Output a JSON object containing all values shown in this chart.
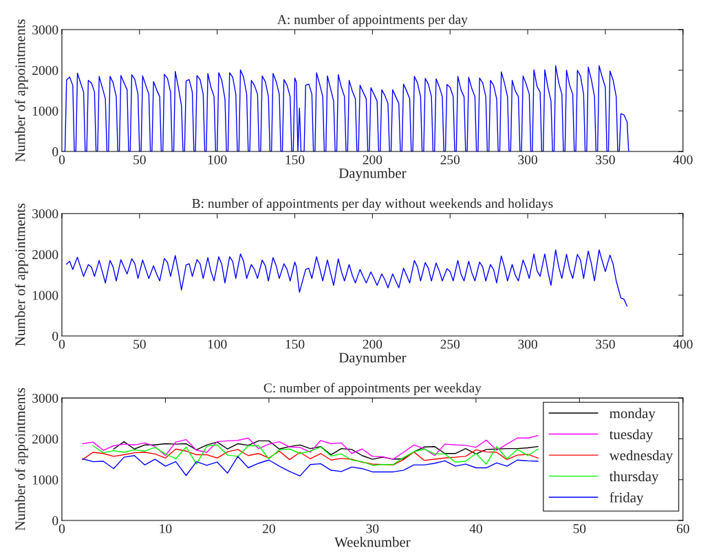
{
  "chart_data": [
    {
      "type": "line",
      "title": "A: number of appointments per day",
      "xlabel": "Daynumber",
      "ylabel": "Number of appointments",
      "xlim": [
        0,
        400
      ],
      "xticks": [
        0,
        50,
        100,
        150,
        200,
        250,
        300,
        350,
        400
      ],
      "ylim": [
        0,
        3000
      ],
      "yticks": [
        0,
        1000,
        2000,
        3000
      ],
      "grid": false,
      "legend": false,
      "marker": "none",
      "line_style": "solid",
      "series": [
        {
          "color": "#0000ff",
          "x": [
            1,
            2,
            3,
            5,
            7,
            8,
            9,
            10,
            12,
            14,
            15,
            16,
            17,
            19,
            21,
            22,
            23,
            24,
            26,
            28,
            29,
            30,
            31,
            33,
            35,
            36,
            37,
            38,
            40,
            42,
            43,
            44,
            45,
            47,
            49,
            50,
            51,
            52,
            54,
            56,
            57,
            58,
            59,
            61,
            63,
            64,
            65,
            66,
            68,
            70,
            71,
            72,
            73,
            75,
            77,
            78,
            79,
            80,
            82,
            84,
            85,
            86,
            87,
            89,
            91,
            92,
            93,
            94,
            96,
            98,
            99,
            100,
            101,
            103,
            105,
            106,
            107,
            108,
            110,
            112,
            113,
            114,
            115,
            117,
            119,
            120,
            121,
            122,
            124,
            126,
            127,
            128,
            129,
            131,
            133,
            134,
            135,
            136,
            138,
            140,
            141,
            142,
            143,
            145,
            147,
            148,
            149,
            150,
            151,
            152,
            153,
            154,
            155,
            156,
            157,
            159,
            161,
            162,
            163,
            164,
            166,
            168,
            169,
            170,
            171,
            173,
            175,
            176,
            177,
            178,
            180,
            182,
            183,
            184,
            185,
            187,
            189,
            190,
            191,
            192,
            194,
            196,
            197,
            198,
            199,
            201,
            203,
            204,
            205,
            206,
            208,
            210,
            211,
            212,
            213,
            215,
            217,
            218,
            219,
            220,
            222,
            224,
            225,
            226,
            227,
            229,
            231,
            232,
            233,
            234,
            236,
            238,
            239,
            240,
            241,
            243,
            245,
            246,
            247,
            248,
            250,
            252,
            253,
            254,
            255,
            257,
            259,
            260,
            261,
            262,
            264,
            266,
            267,
            268,
            269,
            271,
            273,
            274,
            275,
            276,
            278,
            280,
            281,
            282,
            283,
            285,
            287,
            288,
            289,
            290,
            292,
            294,
            295,
            296,
            297,
            299,
            301,
            302,
            303,
            304,
            306,
            308,
            309,
            310,
            311,
            313,
            315,
            316,
            317,
            318,
            320,
            322,
            323,
            324,
            325,
            327,
            329,
            330,
            331,
            332,
            334,
            336,
            337,
            338,
            339,
            341,
            343,
            344,
            345,
            346,
            348,
            350,
            351,
            352,
            353,
            355,
            357,
            358,
            359,
            360,
            362,
            364,
            365
          ],
          "values": [
            0,
            0,
            1760,
            1830,
            1630,
            0,
            0,
            1930,
            1690,
            1460,
            0,
            0,
            1750,
            1690,
            1460,
            0,
            0,
            1850,
            1580,
            1300,
            0,
            0,
            1850,
            1690,
            1350,
            0,
            0,
            1870,
            1690,
            1520,
            0,
            0,
            1890,
            1770,
            1410,
            0,
            0,
            1860,
            1630,
            1410,
            0,
            0,
            1720,
            1520,
            1350,
            0,
            0,
            1900,
            1800,
            1460,
            0,
            0,
            1970,
            1580,
            1130,
            0,
            0,
            1740,
            1770,
            1460,
            0,
            0,
            1870,
            1770,
            1410,
            0,
            0,
            1920,
            1580,
            1350,
            0,
            0,
            1940,
            1750,
            1300,
            0,
            0,
            1940,
            1830,
            1410,
            0,
            0,
            2010,
            1830,
            1410,
            0,
            0,
            1750,
            1630,
            1410,
            0,
            0,
            1860,
            1720,
            1350,
            0,
            0,
            1920,
            1720,
            1410,
            0,
            0,
            1770,
            1630,
            1350,
            0,
            0,
            1810,
            1700,
            0,
            1070,
            0,
            0,
            0,
            1630,
            1660,
            1410,
            0,
            0,
            1940,
            1660,
            1350,
            0,
            0,
            1860,
            1550,
            1240,
            0,
            0,
            1890,
            1580,
            1350,
            0,
            0,
            1750,
            1490,
            1300,
            0,
            0,
            1630,
            1460,
            1300,
            0,
            0,
            1570,
            1410,
            1240,
            0,
            0,
            1520,
            1380,
            1180,
            0,
            0,
            1520,
            1350,
            1180,
            0,
            0,
            1660,
            1490,
            1300,
            0,
            0,
            1850,
            1690,
            1350,
            0,
            0,
            1800,
            1660,
            1350,
            0,
            0,
            1790,
            1600,
            1350,
            0,
            0,
            1650,
            1580,
            1350,
            0,
            0,
            1850,
            1520,
            1350,
            0,
            0,
            1830,
            1550,
            1350,
            0,
            0,
            1810,
            1690,
            1350,
            0,
            0,
            1750,
            1630,
            1300,
            0,
            0,
            1960,
            1690,
            1350,
            0,
            0,
            1750,
            1490,
            1350,
            0,
            0,
            1860,
            1660,
            1410,
            0,
            0,
            2010,
            1600,
            1460,
            0,
            0,
            2010,
            1580,
            1240,
            0,
            0,
            2110,
            1690,
            1410,
            0,
            0,
            2000,
            1630,
            1410,
            0,
            0,
            2000,
            1860,
            1410,
            0,
            0,
            2080,
            1770,
            1350,
            0,
            0,
            2110,
            1830,
            1580,
            0,
            0,
            1980,
            1760,
            1350,
            0,
            0,
            930,
            900,
            730,
            0
          ]
        }
      ]
    },
    {
      "type": "line",
      "title": "B: number of appointments per day without weekends and holidays",
      "xlabel": "Daynumber",
      "ylabel": "Number of appointments",
      "xlim": [
        0,
        400
      ],
      "xticks": [
        0,
        50,
        100,
        150,
        200,
        250,
        300,
        350,
        400
      ],
      "ylim": [
        0,
        3000
      ],
      "yticks": [
        0,
        1000,
        2000,
        3000
      ],
      "grid": false,
      "legend": false,
      "marker": "none",
      "line_style": "solid",
      "series": [
        {
          "color": "#0000ff",
          "x": [
            3,
            5,
            7,
            10,
            12,
            14,
            17,
            19,
            21,
            24,
            26,
            28,
            31,
            33,
            35,
            38,
            40,
            42,
            45,
            47,
            49,
            52,
            54,
            56,
            59,
            61,
            63,
            66,
            68,
            70,
            73,
            75,
            77,
            80,
            82,
            84,
            87,
            89,
            91,
            94,
            96,
            98,
            101,
            103,
            105,
            108,
            110,
            112,
            115,
            117,
            119,
            122,
            124,
            126,
            129,
            131,
            133,
            136,
            138,
            140,
            143,
            145,
            147,
            150,
            151,
            153,
            157,
            159,
            161,
            164,
            166,
            168,
            171,
            173,
            175,
            178,
            180,
            182,
            185,
            187,
            189,
            192,
            194,
            196,
            199,
            201,
            203,
            206,
            208,
            210,
            213,
            215,
            217,
            220,
            222,
            224,
            227,
            229,
            231,
            234,
            236,
            238,
            241,
            243,
            245,
            248,
            250,
            252,
            255,
            257,
            259,
            262,
            264,
            266,
            269,
            271,
            273,
            276,
            278,
            280,
            283,
            285,
            287,
            290,
            292,
            294,
            297,
            299,
            301,
            304,
            306,
            308,
            311,
            313,
            315,
            318,
            320,
            322,
            325,
            327,
            329,
            332,
            334,
            336,
            339,
            341,
            343,
            346,
            348,
            350,
            353,
            355,
            357,
            360,
            362,
            364
          ],
          "values": [
            1760,
            1830,
            1630,
            1930,
            1690,
            1460,
            1750,
            1690,
            1460,
            1850,
            1580,
            1300,
            1850,
            1690,
            1350,
            1870,
            1690,
            1520,
            1890,
            1770,
            1410,
            1860,
            1630,
            1410,
            1720,
            1520,
            1350,
            1900,
            1800,
            1460,
            1970,
            1580,
            1130,
            1740,
            1770,
            1460,
            1870,
            1770,
            1410,
            1920,
            1580,
            1350,
            1940,
            1750,
            1300,
            1940,
            1830,
            1410,
            2010,
            1830,
            1410,
            1750,
            1630,
            1410,
            1860,
            1720,
            1350,
            1920,
            1720,
            1410,
            1770,
            1630,
            1350,
            1810,
            1700,
            1070,
            1630,
            1660,
            1410,
            1940,
            1660,
            1350,
            1860,
            1550,
            1240,
            1890,
            1580,
            1350,
            1750,
            1490,
            1300,
            1630,
            1460,
            1300,
            1570,
            1410,
            1240,
            1520,
            1380,
            1180,
            1520,
            1350,
            1180,
            1660,
            1490,
            1300,
            1850,
            1690,
            1350,
            1800,
            1660,
            1350,
            1790,
            1600,
            1350,
            1650,
            1580,
            1350,
            1850,
            1520,
            1350,
            1830,
            1550,
            1350,
            1810,
            1690,
            1350,
            1750,
            1630,
            1300,
            1960,
            1690,
            1350,
            1750,
            1490,
            1350,
            1860,
            1660,
            1410,
            2010,
            1600,
            1460,
            2010,
            1580,
            1240,
            2110,
            1690,
            1410,
            2000,
            1630,
            1410,
            2000,
            1860,
            1410,
            2080,
            1770,
            1350,
            2110,
            1830,
            1580,
            1980,
            1760,
            1350,
            930,
            900,
            730
          ]
        }
      ]
    },
    {
      "type": "line",
      "title": "C: number of appointments per weekday",
      "xlabel": "Weeknumber",
      "ylabel": "Number of appointments",
      "xlim": [
        0,
        60
      ],
      "xticks": [
        0,
        10,
        20,
        30,
        40,
        50,
        60
      ],
      "ylim": [
        0,
        3000
      ],
      "yticks": [
        0,
        1000,
        2000,
        3000
      ],
      "grid": false,
      "legend": "top right",
      "marker": "none",
      "line_style": "solid",
      "series": [
        {
          "name": "monday",
          "color": "#000000",
          "x": [
            5,
            6,
            7,
            8,
            9,
            10,
            11,
            12,
            13,
            14,
            15,
            16,
            17,
            18,
            19,
            20,
            21,
            22,
            23,
            24,
            25,
            26,
            27,
            28,
            29,
            30,
            31,
            32,
            33,
            34,
            35,
            36,
            37,
            38,
            39,
            40,
            41,
            42,
            43,
            44,
            45,
            46
          ],
          "values": [
            1750,
            1930,
            1750,
            1850,
            1850,
            1880,
            1870,
            1880,
            1730,
            1850,
            1920,
            1750,
            1880,
            1840,
            1950,
            1950,
            1750,
            1810,
            1850,
            1760,
            1810,
            1610,
            1760,
            1740,
            1590,
            1500,
            1550,
            1500,
            1510,
            1680,
            1800,
            1810,
            1640,
            1640,
            1760,
            1630,
            1740,
            1750,
            1760,
            1760,
            1780,
            1810
          ]
        },
        {
          "name": "tuesday",
          "color": "#ff00ff",
          "x": [
            2,
            3,
            4,
            5,
            6,
            7,
            8,
            9,
            10,
            11,
            12,
            13,
            14,
            15,
            16,
            17,
            18,
            19,
            20,
            21,
            22,
            23,
            24,
            25,
            26,
            27,
            28,
            29,
            30,
            31,
            32,
            33,
            34,
            35,
            36,
            37,
            38,
            39,
            40,
            41,
            42,
            43,
            44,
            45,
            46
          ],
          "values": [
            1880,
            1920,
            1720,
            1830,
            1870,
            1850,
            1900,
            1810,
            1590,
            1920,
            1980,
            1720,
            1670,
            1930,
            1950,
            1960,
            2020,
            1760,
            1870,
            1930,
            1800,
            1790,
            1670,
            1960,
            1880,
            1900,
            1640,
            1750,
            1570,
            1560,
            1500,
            1670,
            1850,
            1760,
            1590,
            1870,
            1850,
            1840,
            1790,
            1970,
            1720,
            1870,
            2020,
            2020,
            2080
          ]
        },
        {
          "name": "wednesday",
          "color": "#ff0000",
          "x": [
            2,
            3,
            4,
            5,
            6,
            7,
            8,
            9,
            10,
            11,
            12,
            13,
            14,
            15,
            16,
            17,
            18,
            19,
            20,
            21,
            22,
            23,
            24,
            25,
            26,
            27,
            28,
            29,
            30,
            31,
            32,
            33,
            34,
            35,
            36,
            37,
            38,
            39,
            40,
            41,
            42,
            43,
            44,
            45,
            46
          ],
          "values": [
            1490,
            1670,
            1640,
            1570,
            1610,
            1660,
            1670,
            1630,
            1530,
            1750,
            1700,
            1610,
            1610,
            1530,
            1680,
            1740,
            1590,
            1640,
            1530,
            1700,
            1490,
            1670,
            1510,
            1640,
            1480,
            1520,
            1500,
            1430,
            1380,
            1370,
            1360,
            1490,
            1680,
            1470,
            1500,
            1530,
            1550,
            1570,
            1730,
            1680,
            1670,
            1490,
            1600,
            1620,
            1530
          ]
        },
        {
          "name": "thursday",
          "color": "#00ff00",
          "x": [
            3,
            4,
            5,
            6,
            7,
            8,
            9,
            10,
            11,
            12,
            13,
            14,
            15,
            16,
            17,
            18,
            19,
            20,
            21,
            22,
            23,
            24,
            25,
            26,
            27,
            28,
            29,
            30,
            31,
            32,
            33,
            34,
            35,
            36,
            37,
            38,
            39,
            40,
            41,
            42,
            43,
            44,
            45,
            46
          ],
          "values": [
            1830,
            1660,
            1710,
            1670,
            1730,
            1700,
            1790,
            1630,
            1510,
            1800,
            1380,
            1820,
            1850,
            1600,
            1570,
            1830,
            1830,
            1510,
            1730,
            1750,
            1640,
            1700,
            1800,
            1580,
            1630,
            1480,
            1440,
            1350,
            1370,
            1370,
            1540,
            1680,
            1750,
            1630,
            1630,
            1430,
            1450,
            1640,
            1380,
            1810,
            1510,
            1740,
            1590,
            1750
          ]
        },
        {
          "name": "friday",
          "color": "#0000ff",
          "x": [
            2,
            3,
            4,
            5,
            6,
            7,
            8,
            9,
            10,
            11,
            12,
            13,
            14,
            15,
            16,
            17,
            18,
            19,
            20,
            21,
            22,
            23,
            24,
            25,
            26,
            27,
            28,
            29,
            30,
            31,
            32,
            33,
            34,
            35,
            36,
            37,
            38,
            39,
            40,
            41,
            42,
            43,
            44,
            45,
            46
          ],
          "values": [
            1510,
            1440,
            1450,
            1270,
            1550,
            1590,
            1360,
            1500,
            1330,
            1440,
            1100,
            1440,
            1350,
            1430,
            1160,
            1570,
            1290,
            1400,
            1480,
            1330,
            1200,
            1090,
            1370,
            1390,
            1230,
            1200,
            1310,
            1270,
            1190,
            1190,
            1190,
            1230,
            1360,
            1360,
            1400,
            1460,
            1330,
            1380,
            1290,
            1290,
            1410,
            1330,
            1480,
            1460,
            1450
          ]
        }
      ]
    }
  ]
}
